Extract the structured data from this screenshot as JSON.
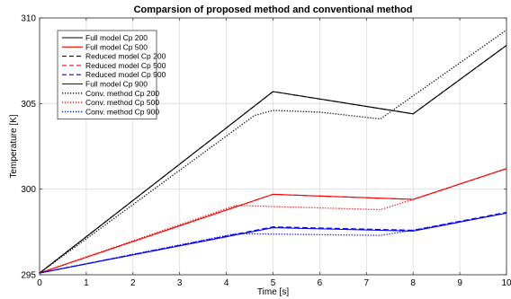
{
  "chart_data": {
    "type": "line",
    "title": "Comparsion of proposed method and conventional method",
    "xlabel": "Time [s]",
    "ylabel": "Temperature [K]",
    "xlim": [
      0,
      10
    ],
    "ylim": [
      295,
      310
    ],
    "xticks": [
      "0",
      "1",
      "2",
      "3",
      "4",
      "5",
      "6",
      "7",
      "8",
      "9",
      "10"
    ],
    "yticks": [
      "295",
      "300",
      "305",
      "310"
    ],
    "grid": true,
    "legend_position": "top-left",
    "series": [
      {
        "name": "Full model Cp 200",
        "color": "#000000",
        "style": "solid",
        "x": [
          0,
          5,
          8,
          10
        ],
        "y": [
          295.1,
          305.7,
          304.4,
          308.4
        ]
      },
      {
        "name": "Full model Cp 500",
        "color": "#ff0000",
        "style": "solid",
        "x": [
          0,
          5,
          8,
          10
        ],
        "y": [
          295.1,
          299.7,
          299.4,
          301.2
        ]
      },
      {
        "name": "Reduced model Cp 200",
        "color": "#000000",
        "style": "dashed",
        "x": [
          0,
          5,
          8,
          10
        ],
        "y": [
          295.1,
          305.7,
          304.4,
          308.4
        ]
      },
      {
        "name": "Reduced model Cp 500",
        "color": "#ff0000",
        "style": "dashed",
        "x": [
          0,
          5,
          8,
          10
        ],
        "y": [
          295.1,
          299.7,
          299.4,
          301.2
        ]
      },
      {
        "name": "Reduced model Cp 900",
        "color": "#0000ff",
        "style": "dashed",
        "x": [
          0,
          5,
          8,
          10
        ],
        "y": [
          295.1,
          297.8,
          297.6,
          298.65
        ]
      },
      {
        "name": "Full model Cp 900",
        "color": "#0000ff",
        "style": "solid",
        "x": [
          0,
          5,
          8,
          10
        ],
        "y": [
          295.1,
          297.75,
          297.55,
          298.6
        ]
      },
      {
        "name": "Conv. method Cp 200",
        "color": "#000000",
        "style": "dotted",
        "x": [
          0,
          4.2,
          4.6,
          5,
          6,
          7.3,
          10
        ],
        "y": [
          295.1,
          303.5,
          304.3,
          304.6,
          304.5,
          304.1,
          309.3
        ]
      },
      {
        "name": "Conv. method Cp 500",
        "color": "#ff0000",
        "style": "dotted",
        "x": [
          0,
          4.2,
          7.3,
          8,
          10
        ],
        "y": [
          295.1,
          299.05,
          298.8,
          299.4,
          301.2
        ]
      },
      {
        "name": "Conv. method Cp 900",
        "color": "#0000ff",
        "style": "dotted",
        "x": [
          0,
          4.2,
          7.3,
          8,
          10
        ],
        "y": [
          295.1,
          297.4,
          297.3,
          297.6,
          298.6
        ]
      }
    ]
  }
}
